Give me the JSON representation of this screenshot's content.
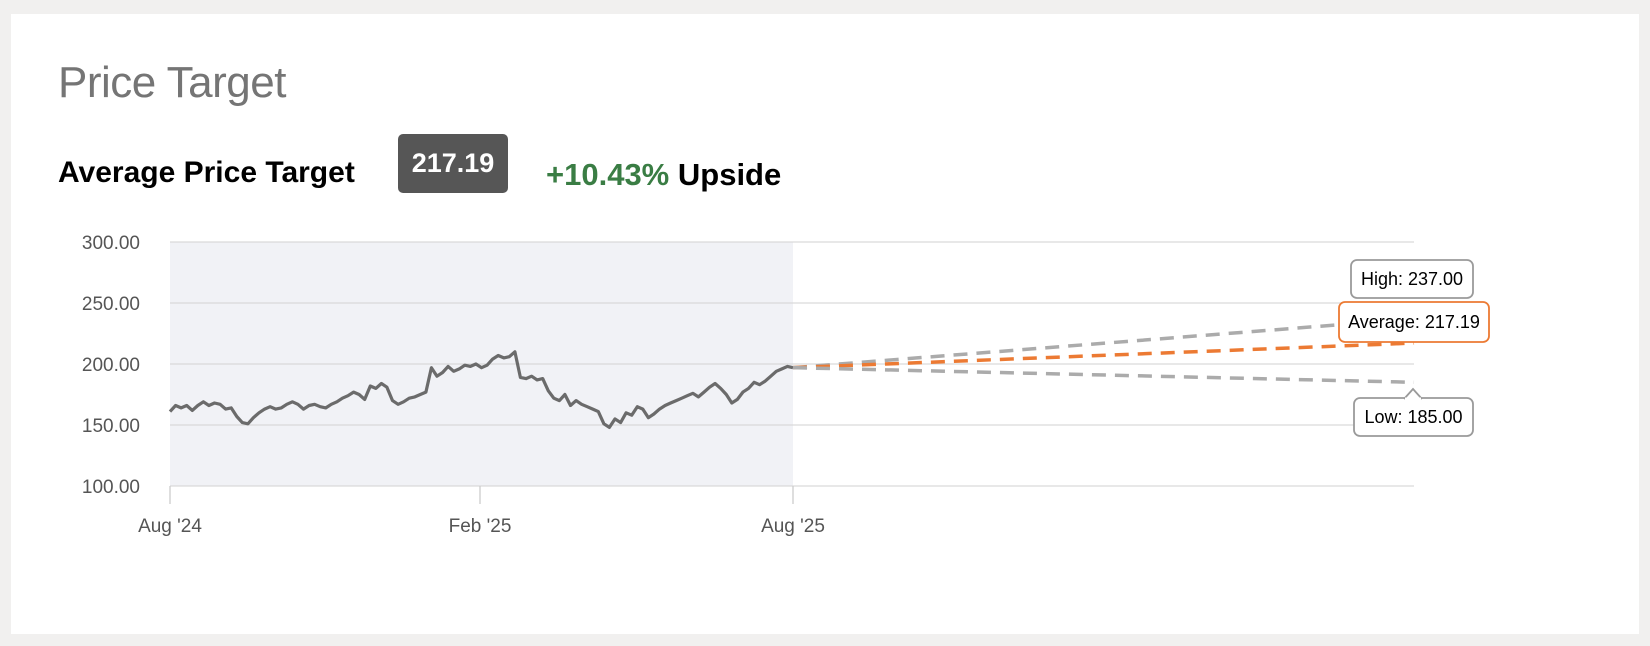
{
  "header": {
    "title": "Price Target",
    "avg_label": "Average Price Target",
    "avg_value": "217.19",
    "upside_pct": "+10.43%",
    "upside_word": "Upside"
  },
  "colors": {
    "history_line": "#6b6b6b",
    "history_band": "#f1f2f6",
    "average": "#ec7a33",
    "high_low": "#ababab",
    "upside_green": "#3a7d44",
    "badge_bg": "#565656"
  },
  "chart_data": {
    "type": "line",
    "ylim": [
      100,
      300
    ],
    "y_ticks": [
      "300.00",
      "250.00",
      "200.00",
      "150.00",
      "100.00"
    ],
    "x_ticks": [
      "Aug '24",
      "Feb '25",
      "Aug '25"
    ],
    "history": {
      "start": "Aug '24",
      "end": "Aug '25",
      "values": [
        161,
        166,
        164,
        166,
        162,
        166,
        169,
        166,
        168,
        167,
        163,
        164,
        157,
        152,
        151,
        156,
        160,
        163,
        165,
        163,
        164,
        167,
        169,
        167,
        163,
        166,
        167,
        165,
        164,
        167,
        169,
        172,
        174,
        177,
        175,
        171,
        182,
        180,
        184,
        181,
        170,
        167,
        169,
        172,
        173,
        175,
        177,
        197,
        190,
        193,
        198,
        194,
        196,
        199,
        198,
        200,
        197,
        199,
        204,
        207,
        205,
        206,
        210,
        189,
        188,
        190,
        187,
        188,
        178,
        172,
        170,
        175,
        166,
        170,
        167,
        165,
        163,
        161,
        151,
        148,
        155,
        152,
        160,
        158,
        165,
        163,
        156,
        159,
        163,
        166,
        168,
        170,
        172,
        174,
        176,
        173,
        177,
        181,
        184,
        180,
        175,
        168,
        171,
        177,
        180,
        185,
        183,
        186,
        190,
        194,
        196,
        198,
        197
      ]
    },
    "targets": [
      {
        "name": "High",
        "label": "High: 237.00",
        "value": 237.0
      },
      {
        "name": "Average",
        "label": "Average: 217.19",
        "value": 217.19
      },
      {
        "name": "Low",
        "label": "Low: 185.00",
        "value": 185.0
      }
    ],
    "current_price": 197,
    "grid": true
  }
}
